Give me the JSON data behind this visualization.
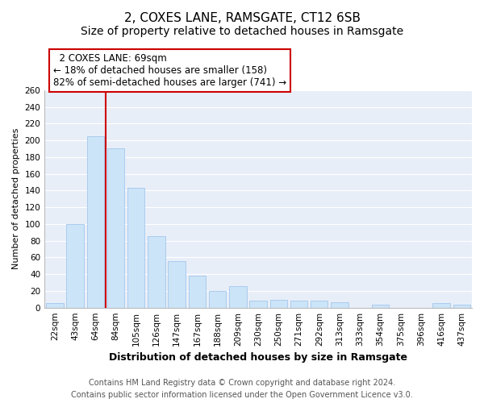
{
  "title": "2, COXES LANE, RAMSGATE, CT12 6SB",
  "subtitle": "Size of property relative to detached houses in Ramsgate",
  "xlabel": "Distribution of detached houses by size in Ramsgate",
  "ylabel": "Number of detached properties",
  "bar_labels": [
    "22sqm",
    "43sqm",
    "64sqm",
    "84sqm",
    "105sqm",
    "126sqm",
    "147sqm",
    "167sqm",
    "188sqm",
    "209sqm",
    "230sqm",
    "250sqm",
    "271sqm",
    "292sqm",
    "313sqm",
    "333sqm",
    "354sqm",
    "375sqm",
    "396sqm",
    "416sqm",
    "437sqm"
  ],
  "bar_values": [
    5,
    100,
    205,
    190,
    143,
    85,
    56,
    38,
    20,
    26,
    8,
    9,
    8,
    8,
    6,
    0,
    4,
    0,
    0,
    5,
    4
  ],
  "bar_color": "#cce4f7",
  "bar_edge_color": "#aaccee",
  "vline_color": "#cc0000",
  "vline_position": 2.5,
  "ylim": [
    0,
    260
  ],
  "yticks": [
    0,
    20,
    40,
    60,
    80,
    100,
    120,
    140,
    160,
    180,
    200,
    220,
    240,
    260
  ],
  "annotation_title": "2 COXES LANE: 69sqm",
  "annotation_line1": "← 18% of detached houses are smaller (158)",
  "annotation_line2": "82% of semi-detached houses are larger (741) →",
  "annotation_box_color": "#ffffff",
  "annotation_box_edge": "#cc0000",
  "footer_line1": "Contains HM Land Registry data © Crown copyright and database right 2024.",
  "footer_line2": "Contains public sector information licensed under the Open Government Licence v3.0.",
  "background_color": "#ffffff",
  "plot_bg_color": "#e8eef8",
  "grid_color": "#ffffff",
  "title_fontsize": 11,
  "subtitle_fontsize": 10,
  "xlabel_fontsize": 9,
  "ylabel_fontsize": 8,
  "tick_fontsize": 7.5,
  "annotation_fontsize": 8.5,
  "footer_fontsize": 7
}
